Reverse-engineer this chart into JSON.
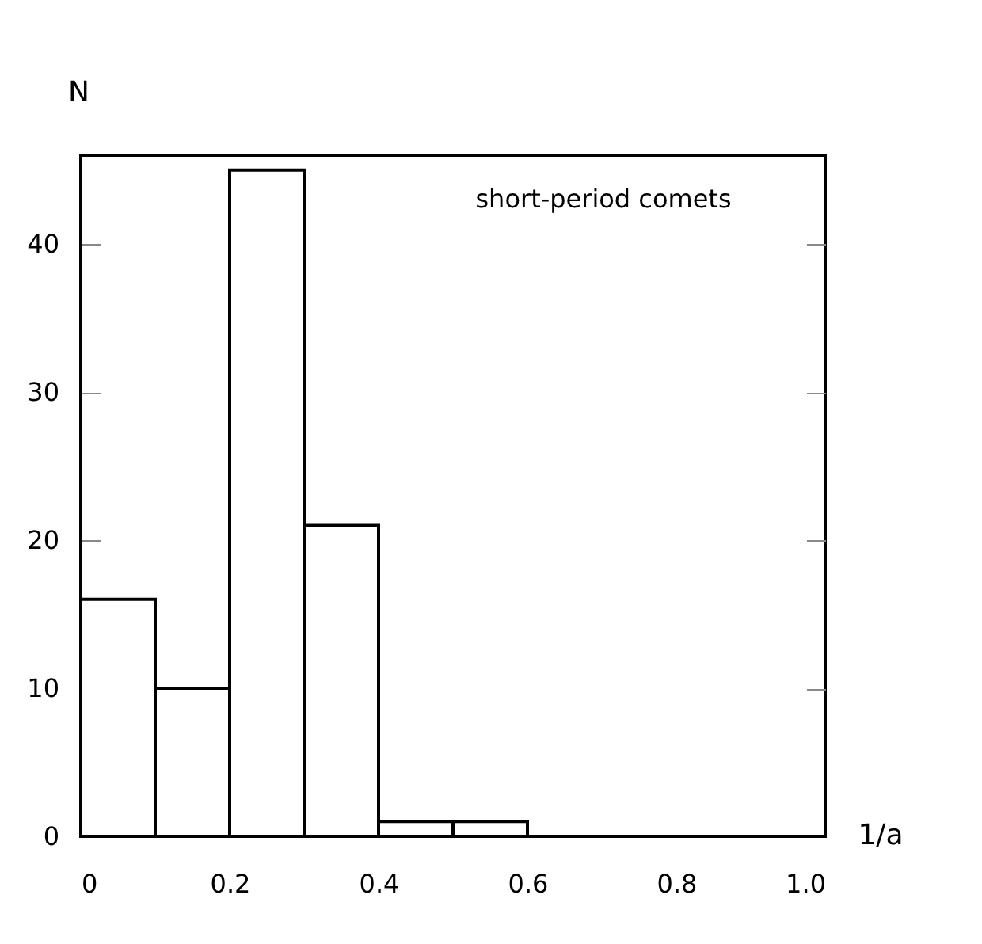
{
  "chart_data": {
    "type": "histogram",
    "bins": [
      0,
      0.1,
      0.2,
      0.3,
      0.4,
      0.5,
      0.6,
      0.7,
      0.8,
      0.9,
      1.0
    ],
    "values": [
      16,
      10,
      45,
      21,
      1,
      1,
      0,
      0,
      0,
      0
    ],
    "color": "#ffffff",
    "xlim": [
      0,
      1.0
    ],
    "xticks": [
      0,
      0.2,
      0.4,
      0.6,
      0.8,
      {
        "value": 1.0,
        "label": "1.0"
      }
    ],
    "ylim": [
      0,
      46
    ],
    "yticks": [
      0,
      10,
      20,
      30,
      40
    ],
    "xlabel": "1/a",
    "ylabel": "N",
    "annotations": [
      "short-period comets"
    ]
  }
}
